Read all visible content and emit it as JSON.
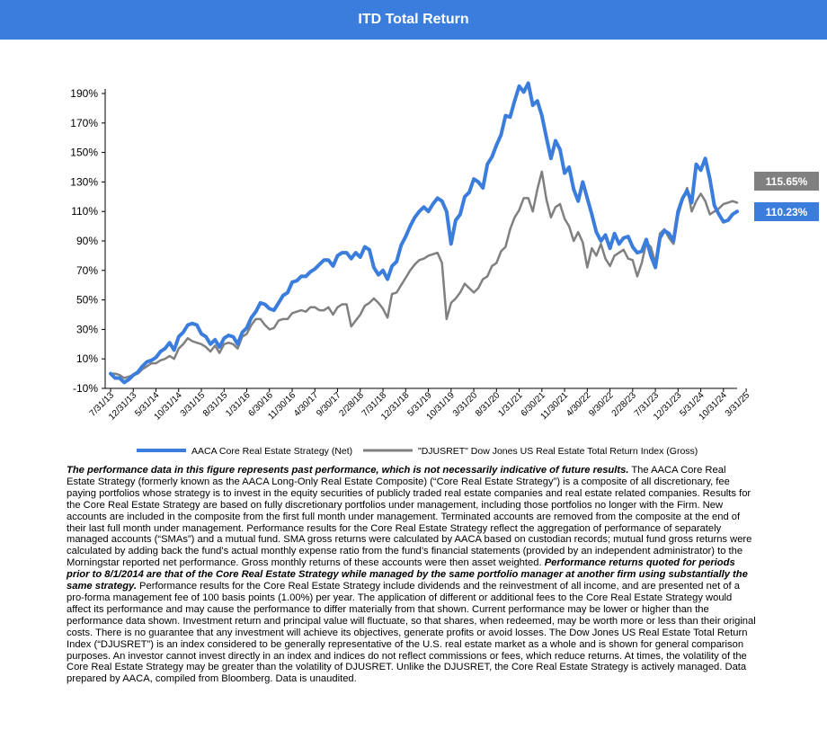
{
  "title": "ITD Total Return",
  "end_labels": {
    "djusret": "115.65%",
    "aaca": "110.23%"
  },
  "disclaimer": {
    "p1_bold": "The performance data in this figure represents past performance, which is not necessarily indicative of future results.",
    "p1_text": " The AACA  Core Real Estate Strategy (formerly known as the AACA  Long-Only Real Estate Composite) (“Core Real Estate Strategy”) is a composite of all discretionary, fee paying portfolios whose strategy is to invest in the equity securities of publicly traded real estate companies and real estate related companies. Results for the Core Real Estate Strategy are based on fully discretionary portfolios under management, including those portfolios no longer with the Firm. New accounts are included in the composite from the first full month under management. Terminated accounts are removed from the composite at the end of their last full month under management. Performance results for the Core Real Estate Strategy reflect the aggregation of performance of separately managed accounts (“SMAs”) and a mutual fund. SMA  gross returns were calculated by AACA  based on custodian records; mutual fund gross returns were calculated by adding back the fund’s actual monthly expense ratio from the fund’s financial statements (provided by an independent administrator) to the Morningstar reported net performance. Gross monthly returns of these accounts were then asset weighted. ",
    "p2_bold": "Performance returns quoted for periods prior to 8/1/2014 are that of the Core Real Estate Strategy while managed by the same portfolio manager at another firm using substantially the same strategy.",
    "p2_text": " Performance results for the Core Real Estate Strategy include dividends and the reinvestment of all income, and are presented net of a pro-forma management fee of 100 basis points (1.00%) per year. The application of different or additional fees to the Core Real Estate Strategy would affect its performance and may cause the performance to differ materially from that  shown. Current performance may be lower or higher than the performance data shown. Investment return and principal value will fluctuate, so that shares, when redeemed, may be worth more or less than their original costs. There is no guarantee that any investment will achieve its objectives, generate profits or avoid losses. The Dow Jones US Real Estate Total Return Index (“DJUSRET”) is an index considered to be generally representative of the U.S.  real estate market as a whole and is shown for general comparison purposes. An investor cannot invest directly in an index and indices do not reflect commissions or fees, which reduce returns. At  times, the volatility of the Core Real Estate Strategy may be greater than the volatility of DJUSRET. Unlike the DJUSRET, the Core Real Estate Strategy is actively managed. Data prepared by AACA,  compiled from Bloomberg. Data is unaudited."
  },
  "chart_data": {
    "type": "line",
    "title": "ITD Total Return",
    "y_ticks": [
      "190%",
      "170%",
      "150%",
      "130%",
      "110%",
      "90%",
      "70%",
      "50%",
      "30%",
      "10%",
      "-10%"
    ],
    "ylim": [
      -10,
      200
    ],
    "x_tick_labels": [
      "7/31/13",
      "12/31/13",
      "5/31/14",
      "10/31/14",
      "3/31/15",
      "8/31/15",
      "1/31/16",
      "6/30/16",
      "11/30/16",
      "4/30/17",
      "9/30/17",
      "2/28/18",
      "7/31/18",
      "12/31/18",
      "5/31/19",
      "10/31/19",
      "3/31/20",
      "8/31/20",
      "1/31/21",
      "6/30/21",
      "11/30/21",
      "4/30/22",
      "9/30/22",
      "2/28/23",
      "7/31/23",
      "12/31/23",
      "5/31/24",
      "10/31/24",
      "3/31/25"
    ],
    "x_tick_interval_months": 5,
    "legend_position": "bottom",
    "colors": {
      "aaca": "#3b7ddd",
      "djusret": "#808080",
      "djusret_label_bg": "#808080",
      "aaca_label_bg": "#3b7ddd"
    },
    "series": [
      {
        "name": "AACA Core Real Estate Strategy (Net)",
        "values": [
          0,
          -3,
          -3,
          -6,
          -4,
          -1,
          1,
          5,
          8,
          9,
          11,
          15,
          17,
          21,
          16,
          25,
          28,
          33,
          34,
          33,
          27,
          25,
          20,
          23,
          18,
          24,
          26,
          25,
          20,
          28,
          31,
          38,
          42,
          48,
          47,
          44,
          43,
          48,
          53,
          55,
          62,
          63,
          66,
          66,
          69,
          71,
          74,
          77,
          77,
          73,
          80,
          82,
          82,
          78,
          82,
          79,
          86,
          84,
          72,
          67,
          70,
          64,
          73,
          76,
          87,
          93,
          100,
          106,
          110,
          113,
          110,
          115,
          119,
          117,
          110,
          88,
          104,
          108,
          120,
          123,
          132,
          130,
          126,
          142,
          147,
          155,
          162,
          175,
          174,
          185,
          195,
          191,
          197,
          182,
          185,
          175,
          160,
          146,
          158,
          152,
          136,
          140,
          125,
          117,
          130,
          119,
          108,
          96,
          90,
          94,
          85,
          95,
          88,
          92,
          93,
          86,
          82,
          83,
          91,
          80,
          72,
          92,
          97,
          95,
          90,
          110,
          119,
          124,
          116,
          142,
          138,
          146,
          132,
          114,
          108,
          103,
          104,
          108,
          110
        ]
      },
      {
        "name": "\"DJUSRET\" Dow Jones US Real Estate Total Return Index (Gross)",
        "values": [
          0,
          0,
          -1,
          -3,
          -2,
          -1,
          0,
          3,
          5,
          7,
          7,
          9,
          10,
          12,
          10,
          17,
          20,
          24,
          22,
          21,
          20,
          18,
          15,
          19,
          14,
          20,
          21,
          20,
          17,
          25,
          27,
          33,
          37,
          37,
          33,
          30,
          31,
          36,
          37,
          37,
          41,
          42,
          43,
          42,
          45,
          45,
          43,
          43,
          45,
          40,
          45,
          47,
          47,
          32,
          36,
          40,
          46,
          48,
          51,
          48,
          44,
          38,
          54,
          55,
          60,
          65,
          70,
          74,
          77,
          78,
          80,
          81,
          82,
          75,
          37,
          48,
          51,
          55,
          61,
          58,
          55,
          58,
          64,
          66,
          73,
          75,
          83,
          86,
          98,
          106,
          111,
          119,
          119,
          110,
          125,
          137,
          118,
          106,
          113,
          115,
          105,
          100,
          90,
          96,
          89,
          72,
          85,
          80,
          88,
          78,
          73,
          80,
          82,
          84,
          78,
          77,
          66,
          75,
          89,
          86,
          75,
          95,
          98,
          92,
          88,
          107,
          118,
          126,
          110,
          117,
          122,
          117,
          108,
          110,
          112,
          115,
          116,
          117,
          116
        ]
      }
    ]
  }
}
